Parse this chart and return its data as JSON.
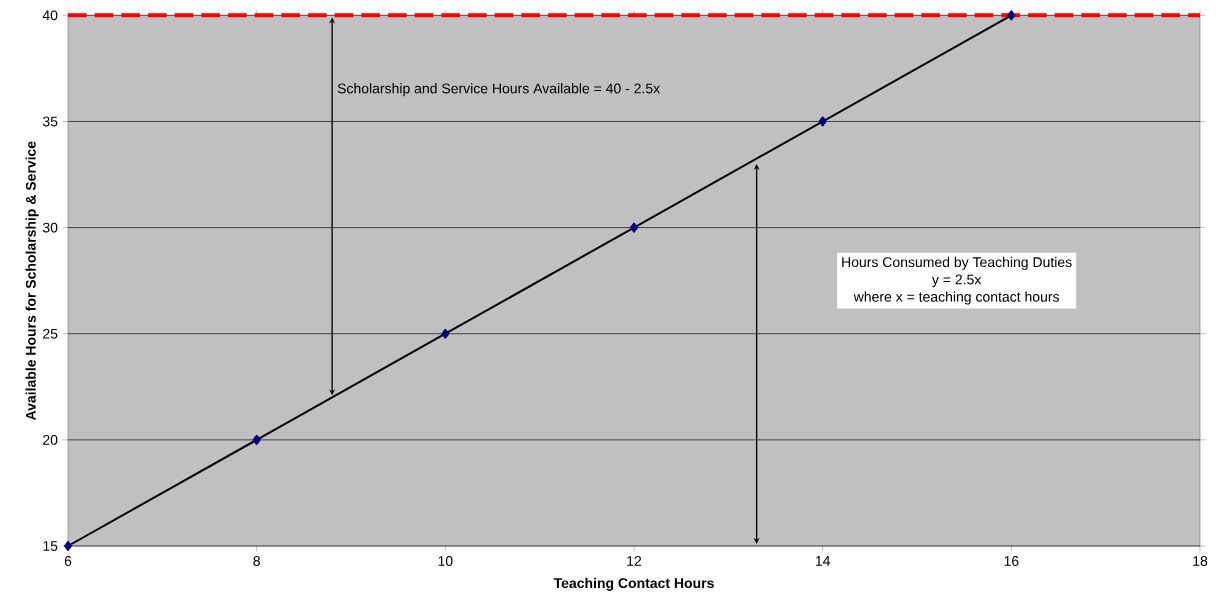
{
  "chart_data": {
    "type": "line",
    "xlabel": "Teaching Contact Hours",
    "ylabel": "Available Hours for Scholarship & Service",
    "x": [
      6,
      8,
      10,
      12,
      14,
      16
    ],
    "series": [
      {
        "color": "#000000",
        "values": [
          15,
          20,
          25,
          30,
          35,
          40
        ]
      }
    ],
    "marker": "diamond",
    "line_style": "solid",
    "xlim": [
      6,
      18
    ],
    "xticks": [
      6,
      8,
      10,
      12,
      14,
      16,
      18
    ],
    "ylim": [
      15,
      40
    ],
    "yticks": [
      15,
      20,
      25,
      30,
      35,
      40
    ],
    "grid": "y",
    "ref_lines": [
      {
        "axis": "y",
        "value": 40,
        "color": "#ff0000",
        "line_style": "dashed"
      }
    ],
    "annotations": [
      "Scholarship and Service Hours Available  = 40 - 2.5x",
      "Hours Consumed by Teaching Duties",
      "y = 2.5x",
      "where  x = teaching contact hours"
    ]
  }
}
